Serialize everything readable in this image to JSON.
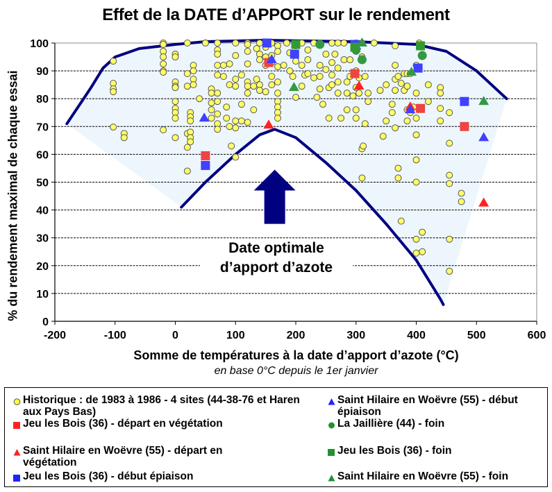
{
  "chart_data": {
    "type": "scatter",
    "title": "Effet de la DATE d’APPORT sur le rendement",
    "xlabel": "Somme de températures à la date d’apport d’azote (°C)",
    "xlabel_sub": "en base 0°C depuis le 1er janvier",
    "ylabel": "% du rendement maximal de chaque essai",
    "xlim": [
      -200,
      600
    ],
    "ylim": [
      0,
      100
    ],
    "xticks": [
      -200,
      -100,
      0,
      100,
      200,
      300,
      400,
      500,
      600
    ],
    "yticks": [
      0,
      10,
      20,
      30,
      40,
      50,
      60,
      70,
      80,
      90,
      100
    ],
    "grid": "horizontal dashed",
    "legend_position": "bottom",
    "annotation": {
      "line1": "Date optimale",
      "line2": "d’apport d’azote",
      "arrow": "up",
      "arrow_color": "#000080"
    },
    "envelope": {
      "color": "#000080",
      "fill": "#eef6fd",
      "upper_curve": [
        [
          -180,
          71
        ],
        [
          -140,
          84
        ],
        [
          -120,
          91
        ],
        [
          -100,
          95
        ],
        [
          -60,
          98
        ],
        [
          0,
          99.5
        ],
        [
          50,
          100.5
        ],
        [
          150,
          101
        ],
        [
          300,
          100.5
        ],
        [
          400,
          99.5
        ],
        [
          450,
          97
        ],
        [
          500,
          90
        ],
        [
          530,
          84
        ],
        [
          550,
          80
        ]
      ],
      "lower_curve": [
        [
          10,
          41
        ],
        [
          50,
          50
        ],
        [
          100,
          60
        ],
        [
          140,
          67
        ],
        [
          165,
          69
        ],
        [
          200,
          66
        ],
        [
          250,
          57
        ],
        [
          300,
          47
        ],
        [
          350,
          35
        ],
        [
          400,
          22
        ],
        [
          440,
          8
        ],
        [
          445,
          6
        ]
      ],
      "fill_left_edge": [
        [
          -180,
          71
        ],
        [
          10,
          41
        ]
      ],
      "fill_right_edge": [
        [
          550,
          80
        ],
        [
          445,
          6
        ]
      ]
    },
    "series": [
      {
        "name": "Historique : de 1983 à 1986 - 4 sites (44-38-76 et Haren aux Pays Bas)",
        "marker": "circle",
        "color": "#ffff66",
        "edge": "#555555",
        "size": "small",
        "points": [
          [
            -103,
            93.5
          ],
          [
            -103,
            85.5
          ],
          [
            -103,
            83.5
          ],
          [
            -103,
            82.5
          ],
          [
            -103,
            69.8
          ],
          [
            -85,
            67.5
          ],
          [
            -85,
            66
          ],
          [
            -20,
            100
          ],
          [
            -20,
            99.5
          ],
          [
            -20,
            97
          ],
          [
            -20,
            95
          ],
          [
            -20,
            92.5
          ],
          [
            -20,
            90
          ],
          [
            -20,
            89.5
          ],
          [
            -20,
            68.8
          ],
          [
            0,
            96
          ],
          [
            0,
            95
          ],
          [
            0,
            86
          ],
          [
            0,
            84.5
          ],
          [
            0,
            84
          ],
          [
            0,
            79
          ],
          [
            0,
            76.5
          ],
          [
            0,
            75
          ],
          [
            0,
            73
          ],
          [
            0,
            66
          ],
          [
            20,
            100
          ],
          [
            20,
            89
          ],
          [
            20,
            84.5
          ],
          [
            20,
            67.5
          ],
          [
            20,
            62.5
          ],
          [
            20,
            54
          ],
          [
            25,
            75
          ],
          [
            25,
            73.5
          ],
          [
            25,
            72
          ],
          [
            25,
            68
          ],
          [
            25,
            66
          ],
          [
            25,
            64.5
          ],
          [
            30,
            92
          ],
          [
            30,
            90
          ],
          [
            30,
            87
          ],
          [
            30,
            85
          ],
          [
            40,
            80
          ],
          [
            50,
            100
          ],
          [
            50,
            100
          ],
          [
            60,
            83.5
          ],
          [
            60,
            82
          ],
          [
            60,
            78.5
          ],
          [
            60,
            76
          ],
          [
            60,
            73
          ],
          [
            70,
            100
          ],
          [
            70,
            97.5
          ],
          [
            70,
            96
          ],
          [
            70,
            92
          ],
          [
            70,
            88.5
          ],
          [
            70,
            82
          ],
          [
            70,
            79
          ],
          [
            70,
            74.5
          ],
          [
            70,
            71
          ],
          [
            70,
            69
          ],
          [
            80,
            92
          ],
          [
            80,
            88
          ],
          [
            85,
            77
          ],
          [
            85,
            73
          ],
          [
            90,
            92.5
          ],
          [
            90,
            85
          ],
          [
            90,
            70
          ],
          [
            93,
            63
          ],
          [
            100,
            100
          ],
          [
            100,
            95.5
          ],
          [
            100,
            87
          ],
          [
            100,
            84.5
          ],
          [
            100,
            72
          ],
          [
            100,
            69.5
          ],
          [
            100,
            59
          ],
          [
            110,
            88.5
          ],
          [
            110,
            78
          ],
          [
            110,
            72
          ],
          [
            120,
            100
          ],
          [
            120,
            99.5
          ],
          [
            120,
            97
          ],
          [
            120,
            92.5
          ],
          [
            120,
            86
          ],
          [
            120,
            84.5
          ],
          [
            120,
            82
          ],
          [
            120,
            71.5
          ],
          [
            130,
            84.5
          ],
          [
            130,
            76
          ],
          [
            135,
            98
          ],
          [
            135,
            87
          ],
          [
            140,
            100
          ],
          [
            140,
            96
          ],
          [
            140,
            94
          ],
          [
            140,
            85
          ],
          [
            140,
            83
          ],
          [
            150,
            98.5
          ],
          [
            150,
            95
          ],
          [
            150,
            92
          ],
          [
            150,
            82.5
          ],
          [
            160,
            100
          ],
          [
            160,
            95.5
          ],
          [
            160,
            93
          ],
          [
            160,
            88
          ],
          [
            160,
            85
          ],
          [
            170,
            99
          ],
          [
            170,
            97
          ],
          [
            170,
            91.5
          ],
          [
            170,
            86
          ],
          [
            170,
            82
          ],
          [
            170,
            79
          ],
          [
            170,
            77
          ],
          [
            170,
            75
          ],
          [
            170,
            73
          ],
          [
            180,
            92
          ],
          [
            185,
            100
          ],
          [
            190,
            96.5
          ],
          [
            190,
            90
          ],
          [
            195,
            88
          ],
          [
            200,
            99
          ],
          [
            200,
            93.5
          ],
          [
            200,
            80.5
          ],
          [
            210,
            100
          ],
          [
            210,
            92
          ],
          [
            210,
            84.5
          ],
          [
            215,
            88.5
          ],
          [
            220,
            97.5
          ],
          [
            220,
            94
          ],
          [
            220,
            89
          ],
          [
            230,
            100
          ],
          [
            230,
            87.5
          ],
          [
            235,
            80.5
          ],
          [
            240,
            100
          ],
          [
            240,
            92
          ],
          [
            240,
            88
          ],
          [
            240,
            83.5
          ],
          [
            245,
            78
          ],
          [
            250,
            96
          ],
          [
            250,
            90.5
          ],
          [
            255,
            84
          ],
          [
            255,
            73
          ],
          [
            260,
            100
          ],
          [
            260,
            93
          ],
          [
            260,
            88.5
          ],
          [
            260,
            85
          ],
          [
            265,
            96
          ],
          [
            270,
            100
          ],
          [
            270,
            91
          ],
          [
            270,
            86
          ],
          [
            270,
            82
          ],
          [
            275,
            73
          ],
          [
            280,
            100
          ],
          [
            280,
            94
          ],
          [
            285,
            86
          ],
          [
            285,
            82
          ],
          [
            285,
            76
          ],
          [
            290,
            94
          ],
          [
            290,
            88
          ],
          [
            295,
            81
          ],
          [
            300,
            100
          ],
          [
            300,
            97
          ],
          [
            300,
            90
          ],
          [
            300,
            84
          ],
          [
            300,
            76
          ],
          [
            300,
            73
          ],
          [
            305,
            87.5
          ],
          [
            305,
            82
          ],
          [
            310,
            100
          ],
          [
            310,
            95
          ],
          [
            310,
            62
          ],
          [
            310,
            51.5
          ],
          [
            312,
            63
          ],
          [
            315,
            88
          ],
          [
            315,
            71
          ],
          [
            320,
            82
          ],
          [
            320,
            79
          ],
          [
            330,
            100
          ],
          [
            340,
            83
          ],
          [
            345,
            66.5
          ],
          [
            350,
            85
          ],
          [
            350,
            72
          ],
          [
            360,
            78
          ],
          [
            360,
            75
          ],
          [
            365,
            99
          ],
          [
            365,
            92
          ],
          [
            365,
            87
          ],
          [
            365,
            83
          ],
          [
            365,
            69.5
          ],
          [
            370,
            88
          ],
          [
            370,
            55
          ],
          [
            370,
            51.5
          ],
          [
            375,
            85.5
          ],
          [
            375,
            36
          ],
          [
            380,
            89
          ],
          [
            380,
            83
          ],
          [
            385,
            89
          ],
          [
            385,
            84.5
          ],
          [
            385,
            76
          ],
          [
            385,
            72
          ],
          [
            390,
            89
          ],
          [
            390,
            75
          ],
          [
            395,
            77
          ],
          [
            400,
            92
          ],
          [
            400,
            82
          ],
          [
            400,
            73
          ],
          [
            400,
            67
          ],
          [
            400,
            58
          ],
          [
            400,
            50
          ],
          [
            400,
            29.5
          ],
          [
            400,
            24.5
          ],
          [
            405,
            100
          ],
          [
            410,
            32
          ],
          [
            410,
            25
          ],
          [
            420,
            79
          ],
          [
            420,
            85
          ],
          [
            440,
            84
          ],
          [
            440,
            82
          ],
          [
            440,
            76.5
          ],
          [
            440,
            72
          ],
          [
            455,
            75
          ],
          [
            455,
            64
          ],
          [
            455,
            52.5
          ],
          [
            455,
            49.5
          ],
          [
            455,
            29.5
          ],
          [
            455,
            18
          ],
          [
            475,
            46
          ],
          [
            475,
            43
          ]
        ]
      },
      {
        "name": "Jeu les Bois (36) - départ en végétation",
        "marker": "square",
        "color": "#ee4444",
        "points": [
          [
            50,
            59.5
          ],
          [
            155,
            93
          ],
          [
            298,
            89
          ],
          [
            407,
            76.5
          ],
          [
            480,
            70
          ]
        ]
      },
      {
        "name": "Saint Hilaire en Woëvre (55) - départ en végétation",
        "marker": "triangle",
        "color": "#ff2222",
        "points": [
          [
            155,
            70.5
          ],
          [
            305,
            84.5
          ],
          [
            390,
            77
          ],
          [
            512,
            42.5
          ]
        ]
      },
      {
        "name": "Jeu les Bois (36) - début épiaison",
        "marker": "square",
        "color": "#4040ff",
        "points": [
          [
            50,
            56
          ],
          [
            152,
            100
          ],
          [
            198,
            96
          ],
          [
            298,
            99.5
          ],
          [
            403,
            91
          ],
          [
            480,
            79
          ]
        ]
      },
      {
        "name": "Saint Hilaire en Woëvre (55) - début épiaison",
        "marker": "triangle",
        "color": "#4040ff",
        "points": [
          [
            48,
            73
          ],
          [
            160,
            94
          ],
          [
            300,
            99
          ],
          [
            390,
            76
          ],
          [
            512,
            66
          ]
        ]
      },
      {
        "name": "La Jaillière (44) - foin",
        "marker": "circle",
        "color": "#339944",
        "size": "large",
        "points": [
          [
            240,
            99.5
          ],
          [
            310,
            94
          ],
          [
            300,
            97.5
          ],
          [
            410,
            95.5
          ]
        ]
      },
      {
        "name": "Jeu les Bois (36) - foin",
        "marker": "square",
        "color": "#339933",
        "points": [
          [
            200,
            99.5
          ],
          [
            298,
            98.5
          ],
          [
            407,
            99
          ]
        ]
      },
      {
        "name": "Saint Hilaire en Woëvre (55) - foin",
        "marker": "triangle",
        "color": "#339944",
        "points": [
          [
            197,
            84
          ],
          [
            310,
            100
          ],
          [
            392,
            89.5
          ],
          [
            512,
            79
          ]
        ]
      }
    ]
  },
  "legend": {
    "items": [
      {
        "label": "Historique : de 1983 à 1986 - 4 sites (44-38-76 et Haren aux Pays Bas)",
        "marker": "circle",
        "color": "#ffff66"
      },
      {
        "label": "Saint Hilaire en Woëvre (55) - début épiaison",
        "marker": "triangle",
        "color": "#2222ff"
      },
      {
        "label": "Jeu les Bois (36) - départ en végétation",
        "marker": "square",
        "color": "#ff2222"
      },
      {
        "label": "La Jaillière (44) - foin",
        "marker": "circle",
        "color": "#22922e"
      },
      {
        "label": "Saint Hilaire en Woëvre (55) - départ en végétation",
        "marker": "triangle",
        "color": "#ff2222"
      },
      {
        "label": "Jeu les Bois (36) - foin",
        "marker": "square",
        "color": "#22922e"
      },
      {
        "label": "Jeu les Bois (36) - début épiaison",
        "marker": "square",
        "color": "#2222ff"
      },
      {
        "label": "Saint Hilaire en Woëvre (55) - foin",
        "marker": "triangle",
        "color": "#22922e"
      }
    ]
  }
}
